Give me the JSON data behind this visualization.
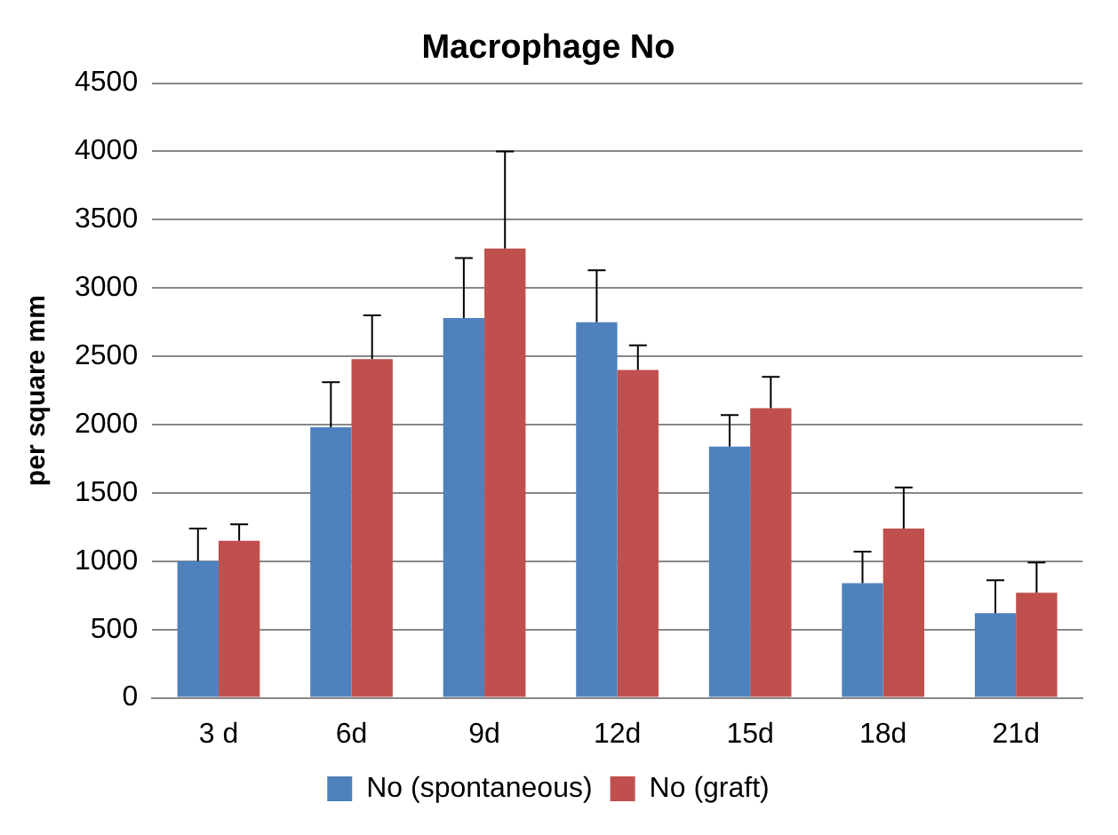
{
  "chart_data": {
    "type": "bar",
    "title": "Macrophage No",
    "ylabel": "per square mm",
    "categories": [
      "3 d",
      "6d",
      "9d",
      "12d",
      "15d",
      "18d",
      "21d"
    ],
    "series": [
      {
        "name": "No (spontaneous)",
        "color": "#4f81bd",
        "values": [
          1000,
          1980,
          2780,
          2750,
          1840,
          840,
          620
        ],
        "errors": [
          [
            1000,
            1240
          ],
          [
            1980,
            2310
          ],
          [
            2780,
            3220
          ],
          [
            2750,
            3130
          ],
          [
            1840,
            2070
          ],
          [
            840,
            1070
          ],
          [
            620,
            860
          ]
        ]
      },
      {
        "name": "No (graft)",
        "color": "#c0504d",
        "values": [
          1150,
          2480,
          3290,
          2400,
          2120,
          1240,
          770
        ],
        "errors": [
          [
            1150,
            1270
          ],
          [
            2480,
            2800
          ],
          [
            3290,
            4000
          ],
          [
            2400,
            2580
          ],
          [
            2120,
            2350
          ],
          [
            1240,
            1540
          ],
          [
            770,
            990
          ]
        ]
      }
    ],
    "ylim": [
      0,
      4500
    ],
    "yticks": [
      0,
      500,
      1000,
      1500,
      2000,
      2500,
      3000,
      3500,
      4000,
      4500
    ],
    "grid": "y",
    "legend": "bottom"
  }
}
